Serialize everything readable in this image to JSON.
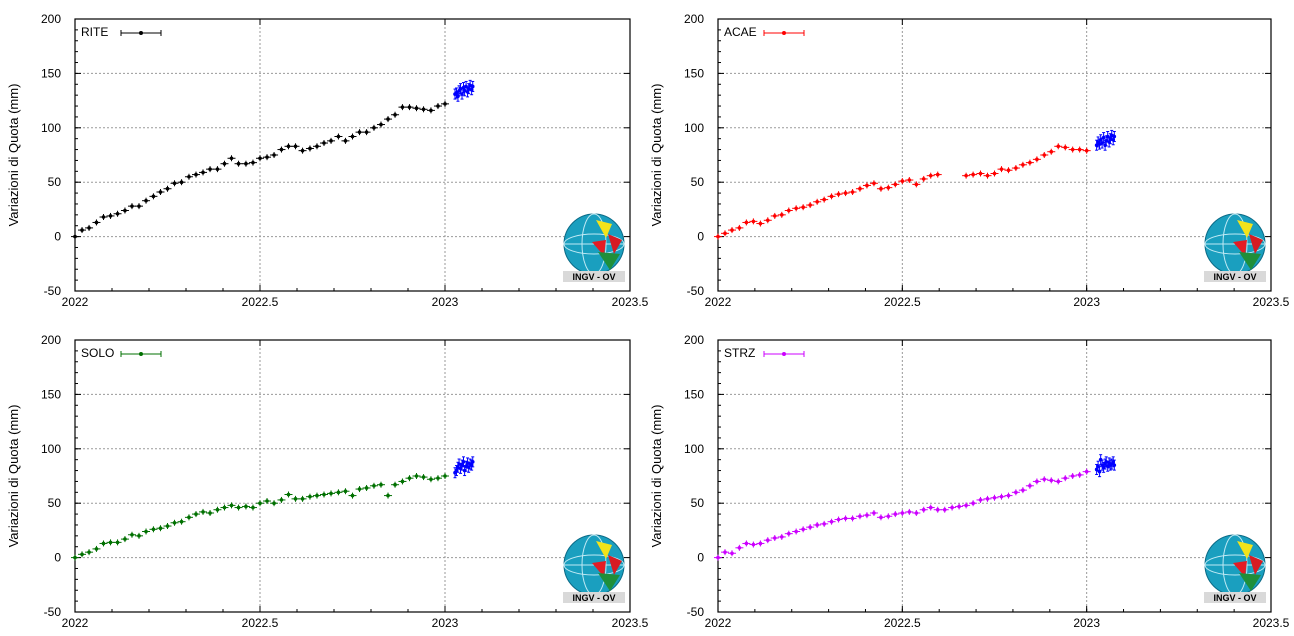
{
  "logo": {
    "text": "INGV - OV"
  },
  "chart_data": [
    {
      "type": "scatter",
      "station": "RITE",
      "color": "#000000",
      "ylabel": "Variazioni di Quota (mm)",
      "xlim": [
        2022,
        2023.5
      ],
      "ylim": [
        -50,
        200
      ],
      "xticks": [
        "2022",
        "2022.5",
        "2023",
        "2023.5"
      ],
      "yticks": [
        "-50",
        "0",
        "50",
        "100",
        "150",
        "200"
      ],
      "grid": true,
      "legend": "top-left",
      "weekly": {
        "x": [
          2022.0,
          2022.019,
          2022.038,
          2022.058,
          2022.077,
          2022.096,
          2022.115,
          2022.135,
          2022.154,
          2022.173,
          2022.192,
          2022.212,
          2022.231,
          2022.25,
          2022.269,
          2022.288,
          2022.308,
          2022.327,
          2022.346,
          2022.365,
          2022.385,
          2022.404,
          2022.423,
          2022.442,
          2022.462,
          2022.481,
          2022.5,
          2022.519,
          2022.538,
          2022.558,
          2022.577,
          2022.596,
          2022.615,
          2022.635,
          2022.654,
          2022.673,
          2022.692,
          2022.712,
          2022.731,
          2022.75,
          2022.769,
          2022.788,
          2022.808,
          2022.827,
          2022.846,
          2022.865,
          2022.885,
          2022.904,
          2022.923,
          2022.942,
          2022.962,
          2022.981,
          2023.0
        ],
        "y": [
          0,
          6,
          8,
          13,
          18,
          19,
          21,
          24,
          28,
          28,
          33,
          37,
          41,
          44,
          49,
          50,
          55,
          57,
          59,
          62,
          62,
          67,
          72,
          67,
          67,
          68,
          72,
          73,
          75,
          80,
          83,
          83,
          79,
          81,
          83,
          86,
          88,
          92,
          88,
          92,
          96,
          96,
          100,
          103,
          108,
          112,
          119,
          119,
          118,
          117,
          116,
          120,
          122
        ]
      },
      "daily": {
        "x": [
          2023.027,
          2023.031,
          2023.035,
          2023.038,
          2023.042,
          2023.046,
          2023.05,
          2023.053,
          2023.057,
          2023.061,
          2023.064,
          2023.068,
          2023.072,
          2023.075
        ],
        "y": [
          131,
          132,
          129,
          134,
          136,
          131,
          137,
          134,
          138,
          133,
          136,
          139,
          135,
          138
        ]
      }
    },
    {
      "type": "scatter",
      "station": "ACAE",
      "color": "#ff0000",
      "ylabel": "Variazioni di Quota (mm)",
      "xlim": [
        2022,
        2023.5
      ],
      "ylim": [
        -50,
        200
      ],
      "xticks": [
        "2022",
        "2022.5",
        "2023",
        "2023.5"
      ],
      "yticks": [
        "-50",
        "0",
        "50",
        "100",
        "150",
        "200"
      ],
      "grid": true,
      "legend": "top-left",
      "weekly": {
        "x": [
          2022.0,
          2022.019,
          2022.038,
          2022.058,
          2022.077,
          2022.096,
          2022.115,
          2022.135,
          2022.154,
          2022.173,
          2022.192,
          2022.212,
          2022.231,
          2022.25,
          2022.269,
          2022.288,
          2022.308,
          2022.327,
          2022.346,
          2022.365,
          2022.385,
          2022.404,
          2022.423,
          2022.442,
          2022.462,
          2022.481,
          2022.5,
          2022.519,
          2022.538,
          2022.558,
          2022.577,
          2022.596,
          2022.673,
          2022.692,
          2022.712,
          2022.731,
          2022.75,
          2022.769,
          2022.788,
          2022.808,
          2022.827,
          2022.846,
          2022.865,
          2022.885,
          2022.904,
          2022.923,
          2022.942,
          2022.962,
          2022.981,
          2023.0
        ],
        "y": [
          0,
          3,
          6,
          8,
          13,
          14,
          12,
          15,
          19,
          20,
          24,
          26,
          27,
          29,
          32,
          34,
          37,
          39,
          40,
          41,
          44,
          47,
          49,
          44,
          45,
          48,
          51,
          52,
          48,
          53,
          56,
          57,
          56,
          57,
          58,
          56,
          58,
          62,
          61,
          63,
          66,
          68,
          71,
          75,
          78,
          83,
          82,
          80,
          80,
          79
        ]
      },
      "daily": {
        "x": [
          2023.027,
          2023.031,
          2023.035,
          2023.038,
          2023.042,
          2023.046,
          2023.05,
          2023.053,
          2023.057,
          2023.061,
          2023.064,
          2023.068,
          2023.072,
          2023.075
        ],
        "y": [
          84,
          87,
          85,
          89,
          86,
          91,
          84,
          88,
          92,
          87,
          90,
          93,
          89,
          92
        ]
      }
    },
    {
      "type": "scatter",
      "station": "SOLO",
      "color": "#007000",
      "ylabel": "Variazioni di Quota (mm)",
      "xlim": [
        2022,
        2023.5
      ],
      "ylim": [
        -50,
        200
      ],
      "xticks": [
        "2022",
        "2022.5",
        "2023",
        "2023.5"
      ],
      "yticks": [
        "-50",
        "0",
        "50",
        "100",
        "150",
        "200"
      ],
      "grid": true,
      "legend": "top-left",
      "weekly": {
        "x": [
          2022.0,
          2022.019,
          2022.038,
          2022.058,
          2022.077,
          2022.096,
          2022.115,
          2022.135,
          2022.154,
          2022.173,
          2022.192,
          2022.212,
          2022.231,
          2022.25,
          2022.269,
          2022.288,
          2022.308,
          2022.327,
          2022.346,
          2022.365,
          2022.385,
          2022.404,
          2022.423,
          2022.442,
          2022.462,
          2022.481,
          2022.5,
          2022.519,
          2022.538,
          2022.558,
          2022.577,
          2022.596,
          2022.615,
          2022.635,
          2022.654,
          2022.673,
          2022.692,
          2022.712,
          2022.731,
          2022.75,
          2022.769,
          2022.788,
          2022.808,
          2022.827,
          2022.846,
          2022.865,
          2022.885,
          2022.904,
          2022.923,
          2022.942,
          2022.962,
          2022.981,
          2023.0
        ],
        "y": [
          0,
          3,
          5,
          8,
          13,
          14,
          14,
          17,
          21,
          20,
          24,
          26,
          27,
          29,
          32,
          33,
          37,
          40,
          42,
          41,
          44,
          46,
          48,
          46,
          47,
          46,
          50,
          52,
          50,
          53,
          58,
          54,
          54,
          56,
          57,
          58,
          59,
          60,
          61,
          57,
          63,
          64,
          66,
          67,
          57,
          67,
          70,
          73,
          75,
          74,
          72,
          73,
          75
        ]
      },
      "daily": {
        "x": [
          2023.027,
          2023.031,
          2023.035,
          2023.038,
          2023.042,
          2023.046,
          2023.05,
          2023.053,
          2023.057,
          2023.061,
          2023.064,
          2023.068,
          2023.072,
          2023.075
        ],
        "y": [
          78,
          80,
          83,
          86,
          82,
          85,
          88,
          80,
          84,
          87,
          83,
          86,
          85,
          88
        ]
      }
    },
    {
      "type": "scatter",
      "station": "STRZ",
      "color": "#cc00ff",
      "ylabel": "Variazioni di Quota (mm)",
      "xlim": [
        2022,
        2023.5
      ],
      "ylim": [
        -50,
        200
      ],
      "xticks": [
        "2022",
        "2022.5",
        "2023",
        "2023.5"
      ],
      "yticks": [
        "-50",
        "0",
        "50",
        "100",
        "150",
        "200"
      ],
      "grid": true,
      "legend": "top-left",
      "weekly": {
        "x": [
          2022.0,
          2022.019,
          2022.038,
          2022.058,
          2022.077,
          2022.096,
          2022.115,
          2022.135,
          2022.154,
          2022.173,
          2022.192,
          2022.212,
          2022.231,
          2022.25,
          2022.269,
          2022.288,
          2022.308,
          2022.327,
          2022.346,
          2022.365,
          2022.385,
          2022.404,
          2022.423,
          2022.442,
          2022.462,
          2022.481,
          2022.5,
          2022.519,
          2022.538,
          2022.558,
          2022.577,
          2022.596,
          2022.615,
          2022.635,
          2022.654,
          2022.673,
          2022.692,
          2022.712,
          2022.731,
          2022.75,
          2022.769,
          2022.788,
          2022.808,
          2022.827,
          2022.846,
          2022.865,
          2022.885,
          2022.904,
          2022.923,
          2022.942,
          2022.962,
          2022.981,
          2023.0
        ],
        "y": [
          0,
          5,
          4,
          9,
          13,
          12,
          13,
          16,
          18,
          19,
          22,
          24,
          26,
          28,
          30,
          31,
          33,
          35,
          36,
          36,
          38,
          39,
          41,
          37,
          38,
          40,
          41,
          42,
          41,
          44,
          46,
          44,
          44,
          46,
          47,
          48,
          50,
          53,
          54,
          55,
          56,
          57,
          60,
          62,
          66,
          70,
          72,
          71,
          70,
          73,
          75,
          76,
          79
        ]
      },
      "daily": {
        "x": [
          2023.027,
          2023.031,
          2023.035,
          2023.038,
          2023.042,
          2023.046,
          2023.05,
          2023.053,
          2023.057,
          2023.061,
          2023.064,
          2023.068,
          2023.072,
          2023.075
        ],
        "y": [
          81,
          84,
          79,
          90,
          85,
          83,
          86,
          88,
          84,
          87,
          85,
          86,
          88,
          85
        ]
      }
    }
  ],
  "daily_color": "#0000ff"
}
